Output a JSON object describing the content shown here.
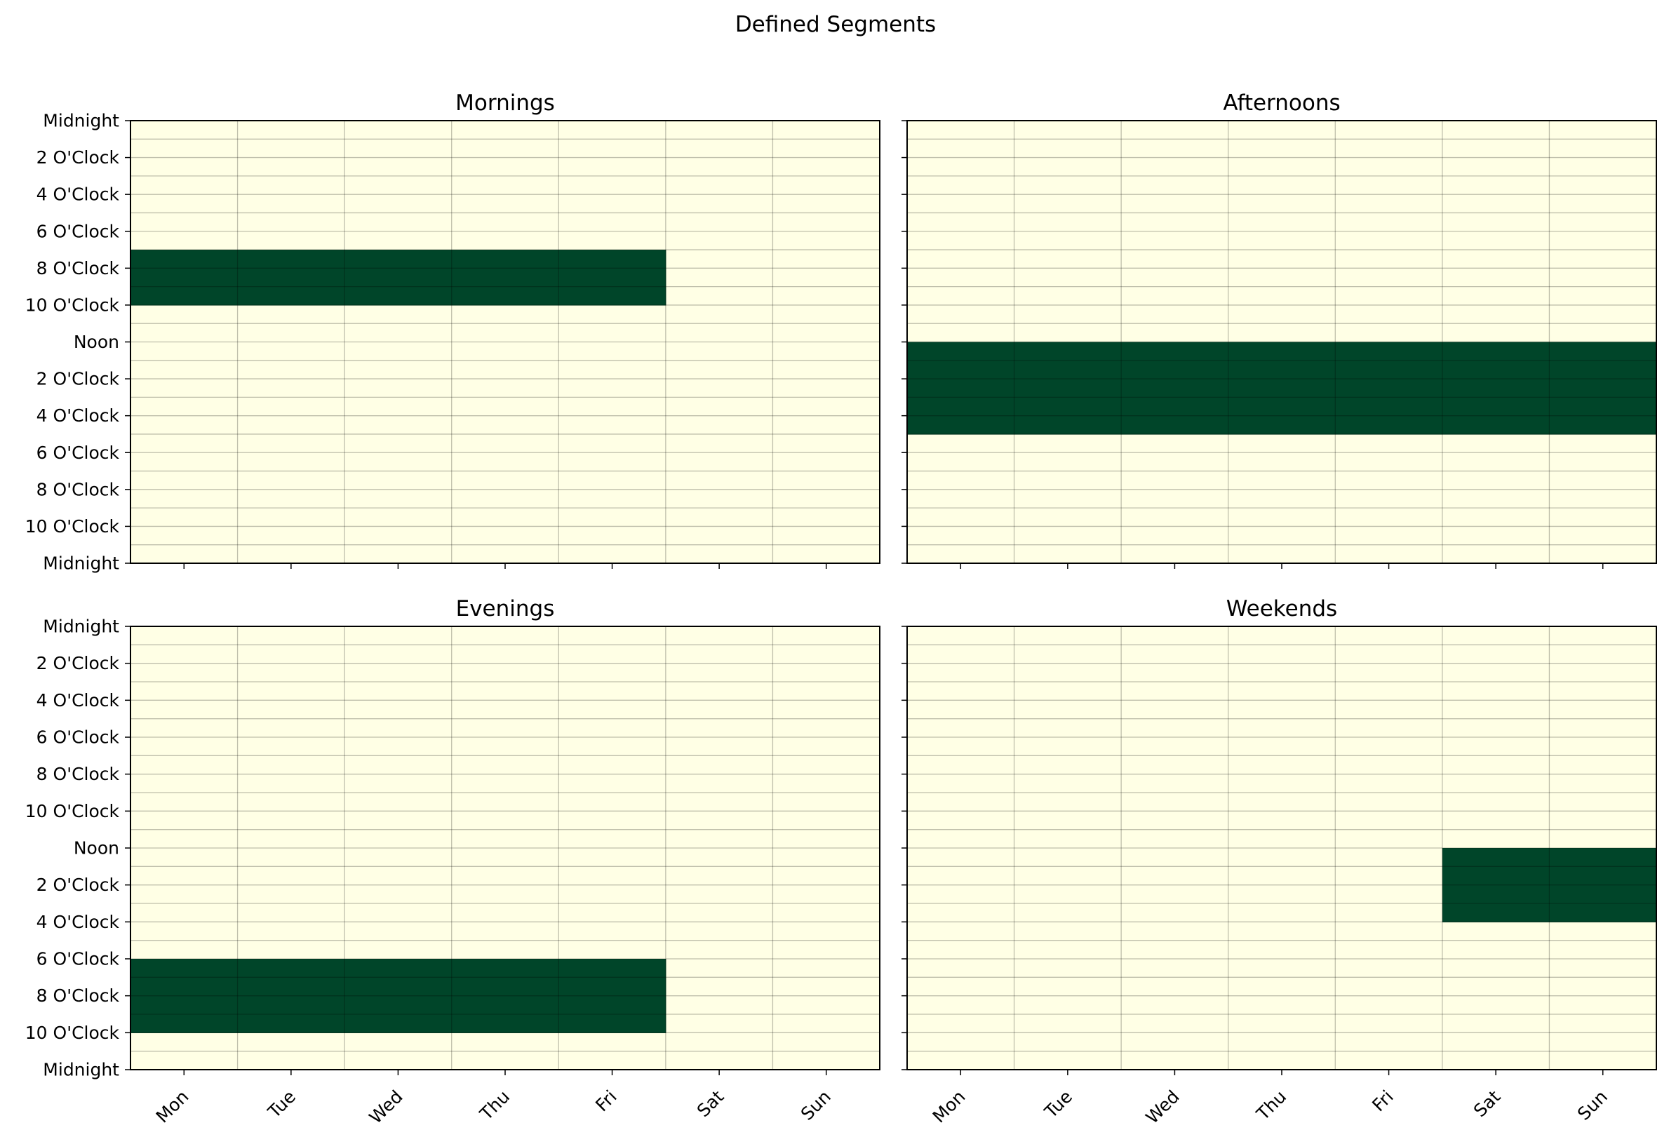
{
  "chart_data": {
    "type": "heatmap",
    "title": "Defined Segments",
    "x_tick_labels": [
      "Mon",
      "Tue",
      "Wed",
      "Thu",
      "Fri",
      "Sat",
      "Sun"
    ],
    "y_tick_labels": [
      "Midnight",
      "2 O'Clock",
      "4 O'Clock",
      "6 O'Clock",
      "8 O'Clock",
      "10 O'Clock",
      "Noon",
      "2 O'Clock",
      "4 O'Clock",
      "6 O'Clock",
      "8 O'Clock",
      "10 O'Clock",
      "Midnight"
    ],
    "grid": true,
    "colors": {
      "off": "#ffffe5",
      "on": "#004529",
      "grid": "#000000",
      "axes": "#000000"
    },
    "panels": [
      {
        "title": "Mornings",
        "active_days": [
          "Mon",
          "Tue",
          "Wed",
          "Thu",
          "Fri"
        ],
        "hours": [
          7,
          8,
          9
        ]
      },
      {
        "title": "Afternoons",
        "active_days": [
          "Mon",
          "Tue",
          "Wed",
          "Thu",
          "Fri",
          "Sat",
          "Sun"
        ],
        "hours": [
          12,
          13,
          14,
          15,
          16
        ]
      },
      {
        "title": "Evenings",
        "active_days": [
          "Mon",
          "Tue",
          "Wed",
          "Thu",
          "Fri"
        ],
        "hours": [
          18,
          19,
          20,
          21
        ]
      },
      {
        "title": "Weekends",
        "active_days": [
          "Sat",
          "Sun"
        ],
        "hours": [
          12,
          13,
          14,
          15
        ]
      }
    ]
  }
}
